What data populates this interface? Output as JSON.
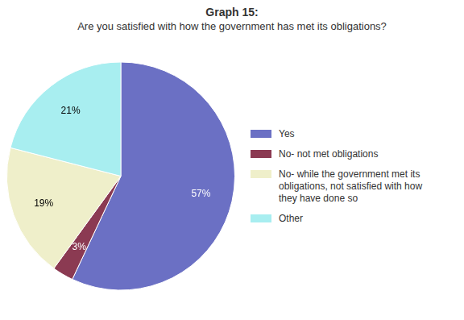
{
  "chart_data": {
    "type": "pie",
    "title": "Graph 15:",
    "subtitle": "Are you satisfied with how the government has met its obligations?",
    "categories": [
      "Yes",
      "No- not met obligations",
      "No- while the government met its\nobligations, not satisfied with how\nthey have done so",
      "Other"
    ],
    "values": [
      57,
      3,
      19,
      21
    ],
    "value_labels": [
      "57%",
      "3%",
      "19%",
      "21%"
    ],
    "colors": [
      "#6B70C4",
      "#8B3A52",
      "#EFEFCA",
      "#A8EEF0"
    ],
    "data_labels": true,
    "legend": "right"
  }
}
